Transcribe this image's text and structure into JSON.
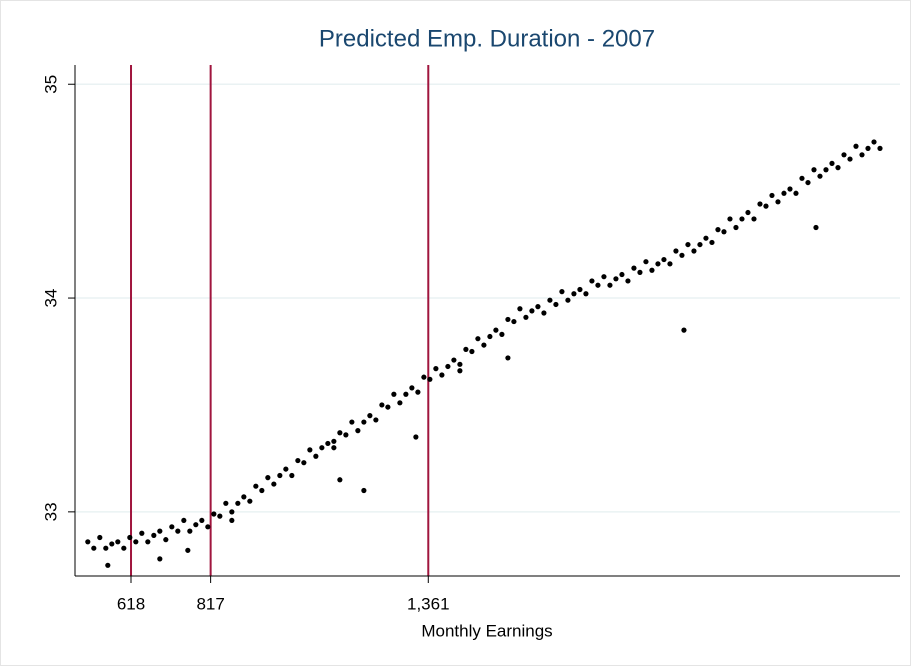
{
  "chart_data": {
    "type": "scatter",
    "title": "Predicted Emp. Duration - 2007",
    "xlabel": "Monthly Earnings",
    "color": "#000000",
    "ref_line_color": "#a0153e",
    "grid": true,
    "xtick_ref_lines": true,
    "xlim": [
      478,
      2540
    ],
    "ylim": [
      32.7,
      35.09
    ],
    "xticks": [
      618,
      817,
      {
        "value": 1361,
        "label": "1,361"
      }
    ],
    "yticks": [
      33,
      34,
      35
    ],
    "x": [
      510,
      525,
      540,
      555,
      570,
      585,
      600,
      615,
      630,
      645,
      660,
      675,
      690,
      705,
      720,
      735,
      750,
      765,
      780,
      795,
      810,
      825,
      840,
      855,
      870,
      885,
      900,
      915,
      930,
      945,
      960,
      975,
      990,
      1005,
      1020,
      1035,
      1050,
      1065,
      1080,
      1095,
      1110,
      1125,
      1140,
      1155,
      1170,
      1185,
      1200,
      1215,
      1230,
      1245,
      1260,
      1275,
      1290,
      1305,
      1320,
      1335,
      1350,
      1365,
      1380,
      1395,
      1410,
      1425,
      1440,
      1455,
      1470,
      1485,
      1500,
      1515,
      1530,
      1545,
      1560,
      1575,
      1590,
      1605,
      1620,
      1635,
      1650,
      1665,
      1680,
      1695,
      1710,
      1725,
      1740,
      1755,
      1770,
      1785,
      1800,
      1815,
      1830,
      1845,
      1860,
      1875,
      1890,
      1905,
      1920,
      1935,
      1950,
      1965,
      1980,
      1995,
      2010,
      2025,
      2040,
      2055,
      2070,
      2085,
      2100,
      2115,
      2130,
      2145,
      2160,
      2175,
      2190,
      2205,
      2220,
      2235,
      2250,
      2265,
      2280,
      2295,
      2310,
      2325,
      2340,
      2355,
      2370,
      2385,
      2400,
      2415,
      2430,
      2445,
      2460,
      2475,
      2490,
      560,
      690,
      760,
      870,
      1125,
      1140,
      1200,
      1330,
      1440,
      1560,
      2000,
      2330
    ],
    "values": [
      32.86,
      32.83,
      32.88,
      32.83,
      32.85,
      32.86,
      32.83,
      32.88,
      32.86,
      32.9,
      32.86,
      32.89,
      32.91,
      32.87,
      32.93,
      32.91,
      32.96,
      32.91,
      32.94,
      32.96,
      32.93,
      32.99,
      32.98,
      33.04,
      33.0,
      33.04,
      33.07,
      33.05,
      33.12,
      33.1,
      33.16,
      33.13,
      33.17,
      33.2,
      33.17,
      33.24,
      33.23,
      33.29,
      33.26,
      33.3,
      33.32,
      33.3,
      33.37,
      33.36,
      33.42,
      33.38,
      33.42,
      33.45,
      33.43,
      33.5,
      33.49,
      33.55,
      33.51,
      33.55,
      33.58,
      33.56,
      33.63,
      33.62,
      33.67,
      33.64,
      33.68,
      33.71,
      33.69,
      33.76,
      33.75,
      33.81,
      33.78,
      33.82,
      33.85,
      33.83,
      33.9,
      33.89,
      33.95,
      33.91,
      33.94,
      33.96,
      33.93,
      33.99,
      33.97,
      34.03,
      33.99,
      34.02,
      34.04,
      34.02,
      34.08,
      34.06,
      34.1,
      34.06,
      34.09,
      34.11,
      34.08,
      34.14,
      34.12,
      34.17,
      34.13,
      34.16,
      34.18,
      34.16,
      34.22,
      34.2,
      34.25,
      34.22,
      34.25,
      34.28,
      34.26,
      34.32,
      34.31,
      34.37,
      34.33,
      34.37,
      34.4,
      34.37,
      34.44,
      34.43,
      34.48,
      34.45,
      34.49,
      34.51,
      34.49,
      34.56,
      34.54,
      34.6,
      34.57,
      34.6,
      34.63,
      34.61,
      34.67,
      34.65,
      34.71,
      34.67,
      34.7,
      34.73,
      34.7,
      32.75,
      32.78,
      32.82,
      32.96,
      33.33,
      33.15,
      33.1,
      33.35,
      33.66,
      33.72,
      33.85,
      34.33
    ]
  }
}
